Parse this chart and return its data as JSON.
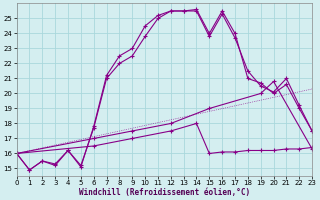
{
  "xlabel": "Windchill (Refroidissement éolien,°C)",
  "background_color": "#d4eef0",
  "line_color": "#880088",
  "grid_color": "#aad8dc",
  "xlim": [
    0,
    23
  ],
  "ylim": [
    14.5,
    26.0
  ],
  "xticks": [
    0,
    1,
    2,
    3,
    4,
    5,
    6,
    7,
    8,
    9,
    10,
    11,
    12,
    13,
    14,
    15,
    16,
    17,
    18,
    19,
    20,
    21,
    22,
    23
  ],
  "yticks": [
    15,
    16,
    17,
    18,
    19,
    20,
    21,
    22,
    23,
    24,
    25
  ],
  "line1_x": [
    0,
    1,
    2,
    3,
    4,
    5,
    6,
    7,
    8,
    9,
    10,
    11,
    12,
    13,
    14,
    15,
    16,
    17,
    18,
    19,
    20,
    21,
    22,
    23
  ],
  "line1_y": [
    16.0,
    14.9,
    15.5,
    15.2,
    16.2,
    15.1,
    17.8,
    21.2,
    22.5,
    23.0,
    24.5,
    25.2,
    25.5,
    25.5,
    25.6,
    24.0,
    25.5,
    24.0,
    21.0,
    20.7,
    20.0,
    20.6,
    19.0,
    17.5
  ],
  "line2_x": [
    0,
    1,
    2,
    3,
    4,
    5,
    6,
    7,
    8,
    9,
    10,
    11,
    12,
    13,
    14,
    15,
    16,
    17,
    18,
    19,
    20,
    21,
    22,
    23
  ],
  "line2_y": [
    16.0,
    14.9,
    15.5,
    15.3,
    16.2,
    15.2,
    17.7,
    21.0,
    22.0,
    22.5,
    23.8,
    25.0,
    25.5,
    25.5,
    25.5,
    23.8,
    25.3,
    23.7,
    21.5,
    20.5,
    20.1,
    21.0,
    19.2,
    17.5
  ],
  "line3_x": [
    0,
    6,
    9,
    12,
    15,
    19,
    20,
    23
  ],
  "line3_y": [
    16.0,
    17.0,
    17.5,
    18.0,
    19.0,
    20.0,
    20.8,
    16.3
  ],
  "line4_x": [
    0,
    6,
    9,
    12,
    14,
    15,
    16,
    17,
    18,
    19,
    20,
    21,
    22,
    23
  ],
  "line4_y": [
    16.0,
    16.5,
    17.0,
    17.5,
    18.0,
    16.0,
    16.1,
    16.1,
    16.2,
    16.2,
    16.2,
    16.3,
    16.3,
    16.4
  ]
}
